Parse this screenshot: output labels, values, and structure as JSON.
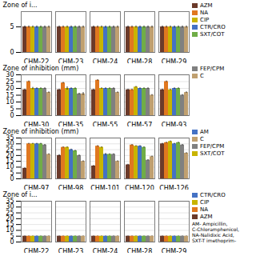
{
  "chart_data": [
    {
      "type": "bar",
      "ylabel": "Zone of i...",
      "categories": [
        "CHM-22",
        "CHM-23",
        "CHM-24",
        "CHM-28",
        "CHM-29"
      ],
      "series": [
        {
          "name": "AZM",
          "color": "#6B3A2A",
          "values": [
            5,
            5,
            5,
            5,
            5
          ],
          "errors": [
            0.2,
            0.2,
            0.2,
            0.2,
            0.2
          ]
        },
        {
          "name": "NA",
          "color": "#E07820",
          "values": [
            5,
            5,
            5,
            5,
            5
          ],
          "errors": [
            0.2,
            0.2,
            0.2,
            0.2,
            0.2
          ]
        },
        {
          "name": "CIP",
          "color": "#C8B400",
          "values": [
            5,
            5,
            5,
            5,
            5
          ],
          "errors": [
            0.2,
            0.2,
            0.2,
            0.2,
            0.2
          ]
        },
        {
          "name": "CTR/CRO",
          "color": "#4472C4",
          "values": [
            5,
            5,
            5,
            5,
            5
          ],
          "errors": [
            0.2,
            0.2,
            0.2,
            0.2,
            0.2
          ]
        },
        {
          "name": "SXT/COT",
          "color": "#70AD47",
          "values": [
            5,
            5,
            5,
            5,
            5
          ],
          "errors": [
            0.2,
            0.2,
            0.2,
            0.2,
            0.2
          ]
        },
        {
          "name": "FEP/CPM",
          "color": "#808080",
          "values": [
            5,
            5,
            5,
            5,
            5
          ],
          "errors": [
            0.2,
            0.2,
            0.2,
            0.2,
            0.2
          ]
        },
        {
          "name": "C",
          "color": "#C0A070",
          "values": [
            5,
            5,
            5,
            5,
            5
          ],
          "errors": [
            0.2,
            0.2,
            0.2,
            0.2,
            0.2
          ]
        }
      ],
      "ylim": [
        0,
        8
      ],
      "yticks": [
        0,
        5
      ],
      "grid": true,
      "annotations": [
        {
          "text": "AZM",
          "color": "#6B3A2A"
        },
        {
          "text": "NA",
          "color": "#E07820"
        },
        {
          "text": "CIP",
          "color": "#C8B400"
        },
        {
          "text": "CTR/CRO",
          "color": "#4472C4"
        },
        {
          "text": "SXT/COT",
          "color": "#70AD47"
        }
      ]
    },
    {
      "type": "bar",
      "ylabel": "Zone of inhibition (mm)",
      "categories": [
        "CHM-30",
        "CHM-35",
        "CHM-55",
        "CHM-57",
        "CHM-93"
      ],
      "series": [
        {
          "name": "AZM",
          "color": "#6B3A2A",
          "values": [
            19,
            19,
            19,
            19,
            19
          ],
          "errors": [
            0.5,
            0.5,
            0.5,
            0.5,
            0.5
          ]
        },
        {
          "name": "NA",
          "color": "#E07820",
          "values": [
            25,
            24,
            26,
            19,
            25
          ],
          "errors": [
            0.5,
            0.5,
            0.5,
            0.5,
            0.5
          ]
        },
        {
          "name": "CIP",
          "color": "#C8B400",
          "values": [
            20,
            20,
            20,
            21,
            19
          ],
          "errors": [
            0.8,
            1.2,
            0.5,
            0.5,
            0.5
          ]
        },
        {
          "name": "CTR/CRO",
          "color": "#4472C4",
          "values": [
            20,
            20,
            20,
            20,
            20
          ],
          "errors": [
            0.5,
            0.5,
            0.5,
            0.5,
            0.5
          ]
        },
        {
          "name": "SXT/COT",
          "color": "#70AD47",
          "values": [
            20,
            20,
            20,
            20,
            20
          ],
          "errors": [
            0.5,
            0.5,
            0.5,
            0.5,
            0.5
          ]
        },
        {
          "name": "FEP/CPM",
          "color": "#808080",
          "values": [
            20,
            16,
            20,
            20,
            15
          ],
          "errors": [
            0.5,
            0.5,
            0.5,
            0.5,
            0.5
          ]
        },
        {
          "name": "C",
          "color": "#C0A070",
          "values": [
            17,
            16,
            17,
            15,
            17
          ],
          "errors": [
            0.5,
            1.0,
            0.5,
            0.5,
            0.5
          ]
        }
      ],
      "ylim": [
        0,
        30
      ],
      "yticks": [
        0,
        5,
        10,
        15,
        20,
        25,
        30
      ],
      "grid": true,
      "annotations": [
        {
          "text": "FEP/CPM",
          "color": "#808080"
        },
        {
          "text": "C",
          "color": "#C0A070"
        }
      ]
    },
    {
      "type": "bar",
      "ylabel": "Zone of inhibition (mm)",
      "categories": [
        "CHM-97",
        "CHM-98",
        "CHM-101",
        "CHM-120",
        "CHM-126"
      ],
      "series": [
        {
          "name": "AZM",
          "color": "#6B3A2A",
          "values": [
            9,
            20,
            11,
            12,
            30
          ],
          "errors": [
            0.5,
            0.8,
            0.5,
            0.5,
            0.5
          ]
        },
        {
          "name": "NA",
          "color": "#E07820",
          "values": [
            30,
            27,
            28,
            29,
            31
          ],
          "errors": [
            0.5,
            0.5,
            0.5,
            0.5,
            0.5
          ]
        },
        {
          "name": "CIP",
          "color": "#C8B400",
          "values": [
            30,
            27,
            27,
            28,
            32
          ],
          "errors": [
            0.5,
            0.5,
            0.5,
            0.5,
            0.5
          ]
        },
        {
          "name": "CTR/CRO",
          "color": "#4472C4",
          "values": [
            30,
            25,
            21,
            28,
            30
          ],
          "errors": [
            0.5,
            0.5,
            0.8,
            0.5,
            0.5
          ]
        },
        {
          "name": "SXT/COT",
          "color": "#70AD47",
          "values": [
            30,
            24,
            21,
            27,
            31
          ],
          "errors": [
            0.5,
            0.5,
            0.5,
            0.5,
            0.5
          ]
        },
        {
          "name": "FEP/CPM",
          "color": "#808080",
          "values": [
            29,
            20,
            21,
            16,
            29
          ],
          "errors": [
            0.5,
            0.5,
            0.5,
            0.5,
            0.5
          ]
        },
        {
          "name": "C",
          "color": "#C0A070",
          "values": [
            21,
            15,
            15,
            19,
            22
          ],
          "errors": [
            0.5,
            0.5,
            0.5,
            0.5,
            0.5
          ]
        }
      ],
      "ylim": [
        0,
        35
      ],
      "yticks": [
        0,
        5,
        10,
        15,
        20,
        25,
        30,
        35
      ],
      "grid": true,
      "annotations": [
        {
          "text": "AM",
          "color": "#4472C4"
        },
        {
          "text": "C",
          "color": "#C0A070"
        },
        {
          "text": "FEP/CPM",
          "color": "#808080"
        },
        {
          "text": "SXT/COT",
          "color": "#C8B400"
        }
      ]
    },
    {
      "type": "bar",
      "ylabel": "Zone of i...",
      "categories": [
        "CHM-22",
        "CHM-23",
        "CHM-24",
        "CHM-28",
        "CHM-29"
      ],
      "series": [
        {
          "name": "AZM",
          "color": "#6B3A2A",
          "values": [
            5,
            5,
            5,
            5,
            5
          ],
          "errors": [
            0.2,
            0.2,
            0.2,
            0.2,
            0.2
          ]
        },
        {
          "name": "NA",
          "color": "#E07820",
          "values": [
            5,
            5,
            5,
            5,
            5
          ],
          "errors": [
            0.2,
            0.2,
            0.2,
            0.2,
            0.2
          ]
        },
        {
          "name": "CIP",
          "color": "#C8B400",
          "values": [
            5,
            5,
            5,
            5,
            5
          ],
          "errors": [
            0.2,
            0.2,
            0.2,
            0.2,
            0.2
          ]
        },
        {
          "name": "CTR/CRO",
          "color": "#4472C4",
          "values": [
            5,
            5,
            5,
            5,
            5
          ],
          "errors": [
            0.2,
            0.2,
            0.2,
            0.2,
            0.2
          ]
        },
        {
          "name": "SXT/COT",
          "color": "#70AD47",
          "values": [
            5,
            5,
            5,
            5,
            5
          ],
          "errors": [
            0.2,
            0.2,
            0.2,
            0.2,
            0.2
          ]
        },
        {
          "name": "FEP/CPM",
          "color": "#808080",
          "values": [
            5,
            5,
            5,
            5,
            5
          ],
          "errors": [
            0.2,
            0.2,
            0.2,
            0.2,
            0.2
          ]
        },
        {
          "name": "C",
          "color": "#C0A070",
          "values": [
            5,
            5,
            5,
            5,
            5
          ],
          "errors": [
            0.2,
            0.2,
            0.2,
            0.2,
            0.2
          ]
        }
      ],
      "ylim": [
        0,
        35
      ],
      "yticks": [
        0,
        5,
        10,
        15,
        20,
        25,
        30,
        35
      ],
      "grid": true,
      "annotations": [
        {
          "text": "CTR/CRO",
          "color": "#4472C4"
        },
        {
          "text": "CIP",
          "color": "#C8B400"
        },
        {
          "text": "NA",
          "color": "#E07820"
        },
        {
          "text": "AZM",
          "color": "#6B3A2A"
        },
        {
          "text": "AM- Ampicillin,\nC-Chloramphenicol,\nNA-Nalidixic Acid,\nSXT-T imethoprim-"
        }
      ]
    }
  ]
}
